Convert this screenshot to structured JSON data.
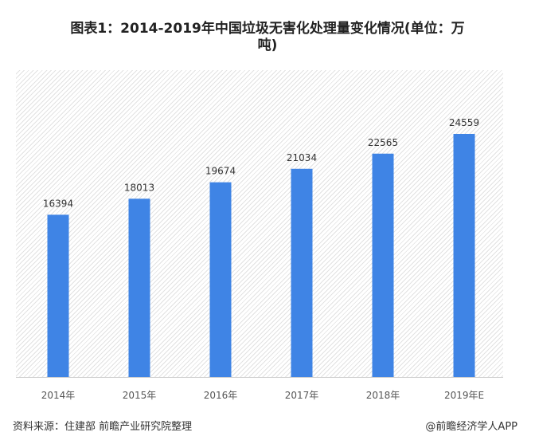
{
  "title_line1": "图表1：2014-2019年中国垃圾无害化处理量变化情况(单位：万",
  "title_line2": "吨)",
  "source": "资料来源：住建部 前瞻产业研究院整理",
  "credit": "@前瞻经济学人APP",
  "watermark": "前瞻产业研究院",
  "chart_data": {
    "type": "bar",
    "title": "图表1：2014-2019年中国垃圾无害化处理量变化情况(单位：万吨)",
    "categories": [
      "2014年",
      "2015年",
      "2016年",
      "2017年",
      "2018年",
      "2019年E"
    ],
    "values": [
      16394,
      18013,
      19674,
      21034,
      22565,
      24559
    ],
    "ylim": [
      0,
      31000
    ],
    "grid": false,
    "legend": "none",
    "bar_color": "#3f84e5",
    "label_color": "#333333"
  }
}
